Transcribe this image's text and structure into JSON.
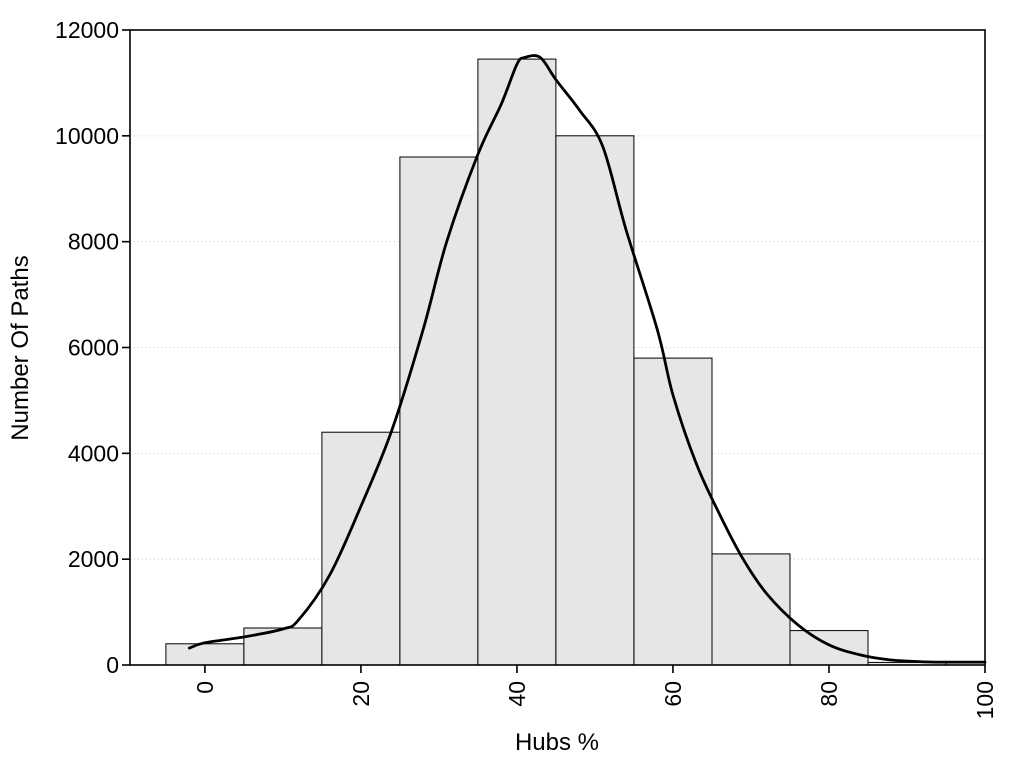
{
  "figure": {
    "background": "#ffffff",
    "frame_color": "#000000"
  },
  "chart_data": {
    "type": "bar",
    "subtype": "histogram-with-density-curve",
    "title": "",
    "xlabel": "Hubs %",
    "ylabel": "Number Of Paths",
    "xlim": [
      -9.6,
      100
    ],
    "ylim": [
      0,
      12000
    ],
    "x_ticks": [
      0,
      20,
      40,
      60,
      80,
      100
    ],
    "y_ticks": [
      0,
      2000,
      4000,
      6000,
      8000,
      10000,
      12000
    ],
    "grid": "horizontal-dotted",
    "grid_color": "#c8c8c8",
    "bin_width": 10,
    "categories": [
      0,
      10,
      20,
      30,
      40,
      50,
      60,
      70,
      80,
      90,
      100
    ],
    "values": [
      400,
      700,
      4400,
      9600,
      11450,
      10000,
      5800,
      2100,
      650,
      50,
      40
    ],
    "bar_fill": "#e6e6e6",
    "bar_stroke": "#000000",
    "curve": {
      "name": "density-curve",
      "color": "#000000",
      "width": 2.8,
      "points": [
        [
          -2,
          320
        ],
        [
          0,
          420
        ],
        [
          5,
          530
        ],
        [
          10,
          680
        ],
        [
          12,
          850
        ],
        [
          16,
          1700
        ],
        [
          20,
          3000
        ],
        [
          24,
          4450
        ],
        [
          28,
          6350
        ],
        [
          31,
          8000
        ],
        [
          35,
          9650
        ],
        [
          38,
          10600
        ],
        [
          40,
          11350
        ],
        [
          41,
          11480
        ],
        [
          43,
          11480
        ],
        [
          45,
          11060
        ],
        [
          48,
          10490
        ],
        [
          51,
          9800
        ],
        [
          54,
          8220
        ],
        [
          58,
          6330
        ],
        [
          60,
          5100
        ],
        [
          63,
          3800
        ],
        [
          66,
          2840
        ],
        [
          69,
          2000
        ],
        [
          72,
          1350
        ],
        [
          76,
          760
        ],
        [
          80,
          380
        ],
        [
          84,
          190
        ],
        [
          88,
          95
        ],
        [
          93,
          57
        ],
        [
          100,
          55
        ]
      ]
    }
  }
}
